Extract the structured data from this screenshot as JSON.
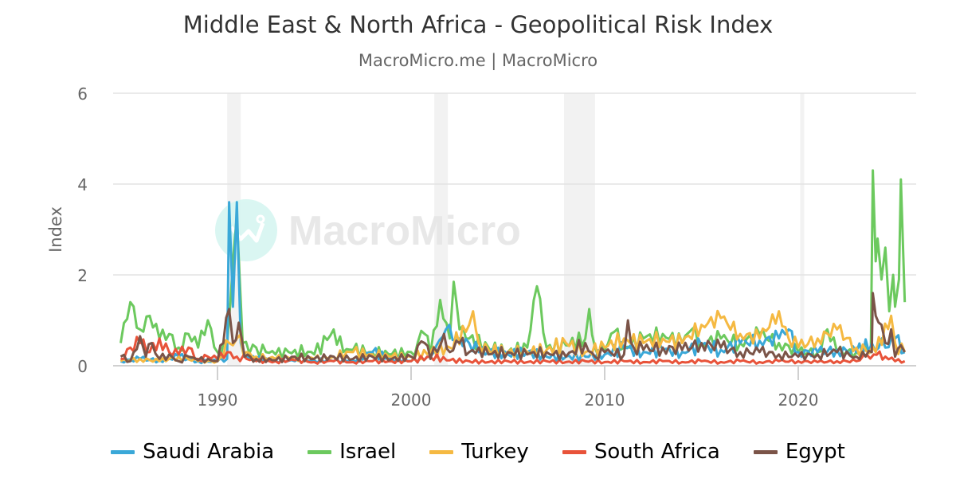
{
  "header": {
    "title": "Middle East & North Africa - Geopolitical Risk Index",
    "subtitle": "MacroMicro.me | MacroMicro"
  },
  "watermark": "MacroMicro",
  "chart_data": {
    "type": "line",
    "title": "Middle East & North Africa - Geopolitical Risk Index",
    "subtitle": "MacroMicro.me | MacroMicro",
    "xlabel": "",
    "ylabel": "Index",
    "xlim": [
      1985,
      2025.6
    ],
    "ylim": [
      0,
      6
    ],
    "yticks": [
      0,
      2,
      4,
      6
    ],
    "xticks": [
      1990,
      2000,
      2010,
      2020
    ],
    "grid": true,
    "legend_position": "bottom",
    "shaded_periods": [
      [
        1990.5,
        1991.2
      ],
      [
        2001.2,
        2001.9
      ],
      [
        2007.9,
        2009.5
      ],
      [
        2020.1,
        2020.3
      ]
    ],
    "series": [
      {
        "name": "Saudi Arabia",
        "color": "#3aa8d8",
        "points": [
          [
            1985,
            0.1
          ],
          [
            1986,
            0.15
          ],
          [
            1987,
            0.12
          ],
          [
            1988,
            0.2
          ],
          [
            1989,
            0.1
          ],
          [
            1990,
            0.1
          ],
          [
            1990.5,
            0.15
          ],
          [
            1990.6,
            3.6
          ],
          [
            1990.8,
            1.3
          ],
          [
            1991.0,
            3.6
          ],
          [
            1991.2,
            0.5
          ],
          [
            1991.5,
            0.2
          ],
          [
            1992,
            0.15
          ],
          [
            1993,
            0.12
          ],
          [
            1994,
            0.1
          ],
          [
            1995,
            0.12
          ],
          [
            1996,
            0.1
          ],
          [
            1997,
            0.12
          ],
          [
            1998,
            0.3
          ],
          [
            1999,
            0.15
          ],
          [
            2000,
            0.1
          ],
          [
            2001,
            0.2
          ],
          [
            2001.8,
            0.8
          ],
          [
            2002.5,
            0.6
          ],
          [
            2003,
            0.5
          ],
          [
            2003.5,
            0.3
          ],
          [
            2004,
            0.3
          ],
          [
            2005,
            0.25
          ],
          [
            2006,
            0.3
          ],
          [
            2007,
            0.2
          ],
          [
            2008,
            0.2
          ],
          [
            2009,
            0.2
          ],
          [
            2010,
            0.25
          ],
          [
            2011,
            0.4
          ],
          [
            2012,
            0.3
          ],
          [
            2013,
            0.35
          ],
          [
            2014,
            0.3
          ],
          [
            2015,
            0.45
          ],
          [
            2016,
            0.35
          ],
          [
            2017,
            0.5
          ],
          [
            2018,
            0.55
          ],
          [
            2019,
            0.6
          ],
          [
            2019.5,
            0.8
          ],
          [
            2020,
            0.3
          ],
          [
            2021,
            0.3
          ],
          [
            2022,
            0.35
          ],
          [
            2023,
            0.3
          ],
          [
            2023.8,
            0.5
          ],
          [
            2024.5,
            0.4
          ],
          [
            2025,
            0.6
          ],
          [
            2025.5,
            0.3
          ]
        ]
      },
      {
        "name": "Israel",
        "color": "#6cc95e",
        "points": [
          [
            1985,
            0.5
          ],
          [
            1985.5,
            1.4
          ],
          [
            1986,
            0.8
          ],
          [
            1986.5,
            1.1
          ],
          [
            1987,
            0.6
          ],
          [
            1987.5,
            0.7
          ],
          [
            1988,
            0.4
          ],
          [
            1988.5,
            0.7
          ],
          [
            1989,
            0.4
          ],
          [
            1989.5,
            1.0
          ],
          [
            1990,
            0.3
          ],
          [
            1990.5,
            0.5
          ],
          [
            1991,
            3.3
          ],
          [
            1991.3,
            0.5
          ],
          [
            1992,
            0.4
          ],
          [
            1992.5,
            0.3
          ],
          [
            1993,
            0.25
          ],
          [
            1994,
            0.35
          ],
          [
            1995,
            0.25
          ],
          [
            1996,
            0.8
          ],
          [
            1996.5,
            0.3
          ],
          [
            1997,
            0.35
          ],
          [
            1998,
            0.3
          ],
          [
            1999,
            0.25
          ],
          [
            2000,
            0.3
          ],
          [
            2000.7,
            0.7
          ],
          [
            2001,
            0.25
          ],
          [
            2001.5,
            1.45
          ],
          [
            2002,
            0.6
          ],
          [
            2002.2,
            1.85
          ],
          [
            2002.5,
            0.8
          ],
          [
            2003,
            0.6
          ],
          [
            2004,
            0.4
          ],
          [
            2005,
            0.3
          ],
          [
            2006,
            0.4
          ],
          [
            2006.5,
            1.75
          ],
          [
            2007,
            0.4
          ],
          [
            2008,
            0.45
          ],
          [
            2009,
            0.6
          ],
          [
            2009.2,
            1.25
          ],
          [
            2009.5,
            0.4
          ],
          [
            2010,
            0.35
          ],
          [
            2010.5,
            0.75
          ],
          [
            2011,
            0.4
          ],
          [
            2012,
            0.6
          ],
          [
            2013,
            0.7
          ],
          [
            2014,
            0.5
          ],
          [
            2014.5,
            0.8
          ],
          [
            2015,
            0.5
          ],
          [
            2016,
            0.6
          ],
          [
            2017,
            0.5
          ],
          [
            2018,
            0.7
          ],
          [
            2019,
            0.5
          ],
          [
            2020,
            0.3
          ],
          [
            2021,
            0.3
          ],
          [
            2021.5,
            0.8
          ],
          [
            2022,
            0.3
          ],
          [
            2023,
            0.3
          ],
          [
            2023.75,
            0.3
          ],
          [
            2023.85,
            4.3
          ],
          [
            2024.0,
            2.3
          ],
          [
            2024.1,
            2.8
          ],
          [
            2024.3,
            1.9
          ],
          [
            2024.5,
            2.6
          ],
          [
            2024.7,
            1.2
          ],
          [
            2024.9,
            2.0
          ],
          [
            2025.0,
            1.3
          ],
          [
            2025.2,
            1.9
          ],
          [
            2025.3,
            4.1
          ],
          [
            2025.5,
            1.4
          ]
        ]
      },
      {
        "name": "Turkey",
        "color": "#f5b942",
        "points": [
          [
            1985,
            0.1
          ],
          [
            1986,
            0.15
          ],
          [
            1987,
            0.1
          ],
          [
            1988,
            0.2
          ],
          [
            1989,
            0.1
          ],
          [
            1990,
            0.1
          ],
          [
            1990.6,
            0.5
          ],
          [
            1991,
            0.6
          ],
          [
            1991.5,
            0.3
          ],
          [
            1992,
            0.2
          ],
          [
            1993,
            0.15
          ],
          [
            1994,
            0.2
          ],
          [
            1995,
            0.15
          ],
          [
            1996,
            0.2
          ],
          [
            1997,
            0.3
          ],
          [
            1998,
            0.25
          ],
          [
            1999,
            0.2
          ],
          [
            2000,
            0.2
          ],
          [
            2001,
            0.3
          ],
          [
            2002,
            0.4
          ],
          [
            2003,
            0.9
          ],
          [
            2003.2,
            1.2
          ],
          [
            2003.5,
            0.5
          ],
          [
            2004,
            0.35
          ],
          [
            2005,
            0.3
          ],
          [
            2006,
            0.3
          ],
          [
            2007,
            0.35
          ],
          [
            2008,
            0.5
          ],
          [
            2009,
            0.3
          ],
          [
            2010,
            0.4
          ],
          [
            2011,
            0.6
          ],
          [
            2012,
            0.5
          ],
          [
            2013,
            0.6
          ],
          [
            2014,
            0.5
          ],
          [
            2015,
            0.9
          ],
          [
            2016,
            1.05
          ],
          [
            2017,
            0.7
          ],
          [
            2018,
            0.6
          ],
          [
            2019,
            1.2
          ],
          [
            2019.5,
            0.6
          ],
          [
            2020,
            0.4
          ],
          [
            2021,
            0.6
          ],
          [
            2022,
            0.8
          ],
          [
            2023,
            0.4
          ],
          [
            2024,
            0.3
          ],
          [
            2024.8,
            1.1
          ],
          [
            2025,
            0.5
          ],
          [
            2025.5,
            0.3
          ]
        ]
      },
      {
        "name": "South Africa",
        "color": "#e8533a",
        "points": [
          [
            1985,
            0.15
          ],
          [
            1985.5,
            0.4
          ],
          [
            1986,
            0.5
          ],
          [
            1986.5,
            0.3
          ],
          [
            1987,
            0.6
          ],
          [
            1987.5,
            0.3
          ],
          [
            1988,
            0.25
          ],
          [
            1988.5,
            0.4
          ],
          [
            1989,
            0.15
          ],
          [
            1989.5,
            0.2
          ],
          [
            1990,
            0.15
          ],
          [
            1990.5,
            0.3
          ],
          [
            1991,
            0.2
          ],
          [
            1991.5,
            0.15
          ],
          [
            1992,
            0.1
          ],
          [
            1993,
            0.1
          ],
          [
            1994,
            0.12
          ],
          [
            1995,
            0.08
          ],
          [
            1996,
            0.1
          ],
          [
            1997,
            0.08
          ],
          [
            1998,
            0.1
          ],
          [
            1999,
            0.1
          ],
          [
            2000,
            0.1
          ],
          [
            2001,
            0.2
          ],
          [
            2002,
            0.12
          ],
          [
            2003,
            0.1
          ],
          [
            2004,
            0.08
          ],
          [
            2005,
            0.1
          ],
          [
            2006,
            0.08
          ],
          [
            2007,
            0.1
          ],
          [
            2008,
            0.08
          ],
          [
            2009,
            0.1
          ],
          [
            2010,
            0.08
          ],
          [
            2011,
            0.1
          ],
          [
            2012,
            0.08
          ],
          [
            2013,
            0.1
          ],
          [
            2014,
            0.08
          ],
          [
            2015,
            0.1
          ],
          [
            2016,
            0.08
          ],
          [
            2017,
            0.1
          ],
          [
            2018,
            0.08
          ],
          [
            2019,
            0.1
          ],
          [
            2020,
            0.1
          ],
          [
            2021,
            0.08
          ],
          [
            2022,
            0.1
          ],
          [
            2023,
            0.1
          ],
          [
            2023.9,
            0.25
          ],
          [
            2024.5,
            0.2
          ],
          [
            2025,
            0.1
          ],
          [
            2025.5,
            0.1
          ]
        ]
      },
      {
        "name": "Egypt",
        "color": "#7b5448",
        "points": [
          [
            1985,
            0.2
          ],
          [
            1985.5,
            0.1
          ],
          [
            1986,
            0.65
          ],
          [
            1986.3,
            0.2
          ],
          [
            1986.6,
            0.5
          ],
          [
            1987,
            0.15
          ],
          [
            1987.5,
            0.25
          ],
          [
            1988,
            0.1
          ],
          [
            1988.5,
            0.2
          ],
          [
            1989,
            0.12
          ],
          [
            1989.5,
            0.15
          ],
          [
            1990,
            0.1
          ],
          [
            1990.6,
            1.25
          ],
          [
            1990.8,
            0.5
          ],
          [
            1991.1,
            0.95
          ],
          [
            1991.4,
            0.2
          ],
          [
            1992,
            0.15
          ],
          [
            1993,
            0.12
          ],
          [
            1994,
            0.2
          ],
          [
            1995,
            0.15
          ],
          [
            1996,
            0.2
          ],
          [
            1997,
            0.15
          ],
          [
            1998,
            0.2
          ],
          [
            1999,
            0.15
          ],
          [
            2000,
            0.2
          ],
          [
            2000.7,
            0.5
          ],
          [
            2001,
            0.15
          ],
          [
            2001.7,
            0.7
          ],
          [
            2002,
            0.3
          ],
          [
            2002.5,
            0.5
          ],
          [
            2003,
            0.3
          ],
          [
            2003.5,
            0.4
          ],
          [
            2004,
            0.25
          ],
          [
            2005,
            0.3
          ],
          [
            2006,
            0.25
          ],
          [
            2007,
            0.3
          ],
          [
            2008,
            0.2
          ],
          [
            2009,
            0.5
          ],
          [
            2009.5,
            0.2
          ],
          [
            2010,
            0.3
          ],
          [
            2011,
            0.25
          ],
          [
            2011.2,
            1.0
          ],
          [
            2011.5,
            0.4
          ],
          [
            2012,
            0.35
          ],
          [
            2013,
            0.4
          ],
          [
            2014,
            0.35
          ],
          [
            2015,
            0.5
          ],
          [
            2016,
            0.4
          ],
          [
            2017,
            0.3
          ],
          [
            2018,
            0.3
          ],
          [
            2019,
            0.25
          ],
          [
            2020,
            0.2
          ],
          [
            2021,
            0.25
          ],
          [
            2022,
            0.3
          ],
          [
            2023,
            0.2
          ],
          [
            2023.8,
            0.3
          ],
          [
            2023.85,
            1.6
          ],
          [
            2024.0,
            1.1
          ],
          [
            2024.3,
            0.9
          ],
          [
            2024.5,
            0.5
          ],
          [
            2024.8,
            0.8
          ],
          [
            2025,
            0.2
          ],
          [
            2025.3,
            0.45
          ],
          [
            2025.5,
            0.3
          ]
        ]
      }
    ]
  },
  "legend": [
    {
      "label": "Saudi Arabia",
      "color": "#3aa8d8"
    },
    {
      "label": "Israel",
      "color": "#6cc95e"
    },
    {
      "label": "Turkey",
      "color": "#f5b942"
    },
    {
      "label": "South Africa",
      "color": "#e8533a"
    },
    {
      "label": "Egypt",
      "color": "#7b5448"
    }
  ]
}
